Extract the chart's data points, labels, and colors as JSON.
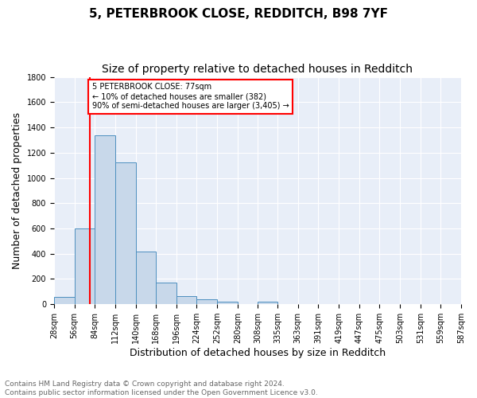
{
  "title_line1": "5, PETERBROOK CLOSE, REDDITCH, B98 7YF",
  "title_line2": "Size of property relative to detached houses in Redditch",
  "xlabel": "Distribution of detached houses by size in Redditch",
  "ylabel": "Number of detached properties",
  "bin_edges": [
    28,
    56,
    84,
    112,
    140,
    168,
    196,
    224,
    252,
    280,
    308,
    335,
    363,
    391,
    419,
    447,
    475,
    503,
    531,
    559,
    587
  ],
  "bar_heights": [
    60,
    600,
    1340,
    1120,
    420,
    170,
    65,
    38,
    18,
    0,
    18,
    0,
    0,
    0,
    0,
    0,
    0,
    0,
    0,
    0
  ],
  "bar_color": "#c8d8ea",
  "bar_edge_color": "#4d8fbf",
  "vline_x": 77,
  "vline_color": "red",
  "annotation_text": "5 PETERBROOK CLOSE: 77sqm\n← 10% of detached houses are smaller (382)\n90% of semi-detached houses are larger (3,405) →",
  "annotation_box_color": "white",
  "annotation_box_edge": "red",
  "ylim": [
    0,
    1800
  ],
  "yticks": [
    0,
    200,
    400,
    600,
    800,
    1000,
    1200,
    1400,
    1600,
    1800
  ],
  "background_color": "#e8eef8",
  "footer_text": "Contains HM Land Registry data © Crown copyright and database right 2024.\nContains public sector information licensed under the Open Government Licence v3.0.",
  "title_fontsize": 11,
  "subtitle_fontsize": 10,
  "xlabel_fontsize": 9,
  "ylabel_fontsize": 9,
  "footer_fontsize": 6.5,
  "tick_fontsize": 7
}
